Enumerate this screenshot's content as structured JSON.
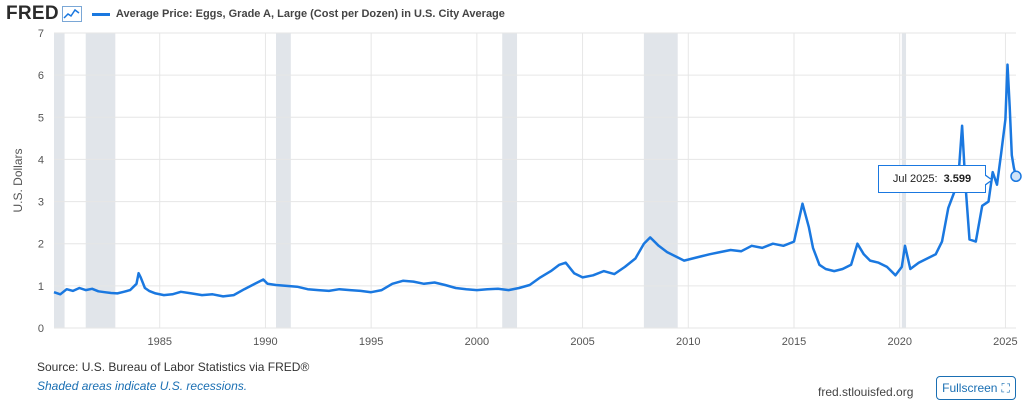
{
  "header": {
    "logo": "FRED",
    "series_title": "Average Price: Eggs, Grade A, Large (Cost per Dozen) in U.S. City Average"
  },
  "colors": {
    "series": "#1a78e0",
    "recession": "#e1e5ea",
    "grid": "#e6e6e6"
  },
  "icons": {
    "logo_chart": "line-chart-icon",
    "fullscreen": "expand-icon"
  },
  "tooltip": {
    "date": "Jul 2025:",
    "value": "3.599"
  },
  "footer": {
    "source": "Source: U.S. Bureau of Labor Statistics via FRED®",
    "recession_note": "Shaded areas indicate U.S. recessions.",
    "site": "fred.stlouisfed.org",
    "fullscreen_label": "Fullscreen"
  },
  "chart_data": {
    "type": "line",
    "ylabel": "U.S. Dollars",
    "ylim": [
      0,
      7
    ],
    "xlim": [
      1980.0,
      2025.5
    ],
    "yticks": [
      0,
      1,
      2,
      3,
      4,
      5,
      6,
      7
    ],
    "xticks": [
      1985,
      1990,
      1995,
      2000,
      2005,
      2010,
      2015,
      2020,
      2025
    ],
    "grid": true,
    "recessions": [
      [
        1980.0,
        1980.5
      ],
      [
        1981.5,
        1982.9
      ],
      [
        1990.5,
        1991.2
      ],
      [
        2001.2,
        2001.9
      ],
      [
        2007.9,
        2009.5
      ],
      [
        2020.1,
        2020.3
      ]
    ],
    "series": [
      {
        "name": "Average Price: Eggs, Grade A, Large (Cost per Dozen) in U.S. City Average",
        "x": [
          1980.0,
          1980.3,
          1980.6,
          1980.9,
          1981.2,
          1981.5,
          1981.8,
          1982.1,
          1982.4,
          1982.7,
          1983.0,
          1983.3,
          1983.6,
          1983.9,
          1984.0,
          1984.1,
          1984.3,
          1984.5,
          1984.8,
          1985.2,
          1985.6,
          1986.0,
          1986.5,
          1987.0,
          1987.5,
          1988.0,
          1988.5,
          1989.0,
          1989.5,
          1989.9,
          1990.1,
          1990.5,
          1991.0,
          1991.5,
          1992.0,
          1992.5,
          1993.0,
          1993.5,
          1994.0,
          1994.5,
          1995.0,
          1995.5,
          1996.0,
          1996.5,
          1997.0,
          1997.5,
          1998.0,
          1998.5,
          1999.0,
          1999.5,
          2000.0,
          2000.5,
          2001.0,
          2001.5,
          2002.0,
          2002.5,
          2003.0,
          2003.5,
          2003.9,
          2004.2,
          2004.6,
          2005.0,
          2005.5,
          2006.0,
          2006.5,
          2007.0,
          2007.5,
          2007.9,
          2008.2,
          2008.6,
          2009.0,
          2009.4,
          2009.8,
          2010.2,
          2010.6,
          2011.0,
          2011.5,
          2012.0,
          2012.5,
          2013.0,
          2013.5,
          2014.0,
          2014.5,
          2015.0,
          2015.4,
          2015.7,
          2015.9,
          2016.2,
          2016.5,
          2016.9,
          2017.3,
          2017.7,
          2018.0,
          2018.3,
          2018.6,
          2019.0,
          2019.4,
          2019.8,
          2020.1,
          2020.25,
          2020.5,
          2020.9,
          2021.3,
          2021.7,
          2022.0,
          2022.3,
          2022.6,
          2022.8,
          2022.95,
          2023.1,
          2023.3,
          2023.6,
          2023.9,
          2024.2,
          2024.4,
          2024.6,
          2024.8,
          2025.0,
          2025.1,
          2025.2,
          2025.3,
          2025.4,
          2025.5
        ],
        "values": [
          0.85,
          0.8,
          0.92,
          0.88,
          0.95,
          0.9,
          0.93,
          0.87,
          0.85,
          0.83,
          0.82,
          0.86,
          0.9,
          1.05,
          1.3,
          1.2,
          0.95,
          0.88,
          0.82,
          0.78,
          0.8,
          0.86,
          0.82,
          0.78,
          0.8,
          0.75,
          0.78,
          0.92,
          1.05,
          1.15,
          1.05,
          1.02,
          1.0,
          0.98,
          0.92,
          0.9,
          0.88,
          0.92,
          0.9,
          0.88,
          0.85,
          0.9,
          1.05,
          1.12,
          1.1,
          1.05,
          1.08,
          1.02,
          0.95,
          0.92,
          0.9,
          0.92,
          0.93,
          0.9,
          0.95,
          1.02,
          1.2,
          1.35,
          1.5,
          1.55,
          1.3,
          1.2,
          1.25,
          1.35,
          1.28,
          1.45,
          1.65,
          2.0,
          2.15,
          1.95,
          1.8,
          1.7,
          1.6,
          1.65,
          1.7,
          1.75,
          1.8,
          1.85,
          1.82,
          1.95,
          1.9,
          2.0,
          1.95,
          2.05,
          2.95,
          2.4,
          1.9,
          1.5,
          1.4,
          1.35,
          1.4,
          1.5,
          2.0,
          1.75,
          1.6,
          1.55,
          1.45,
          1.25,
          1.45,
          1.95,
          1.4,
          1.55,
          1.65,
          1.75,
          2.05,
          2.85,
          3.25,
          3.75,
          4.8,
          3.45,
          2.1,
          2.05,
          2.9,
          3.0,
          3.7,
          3.4,
          4.15,
          4.95,
          6.25,
          5.25,
          4.1,
          3.8,
          3.6
        ]
      }
    ]
  }
}
